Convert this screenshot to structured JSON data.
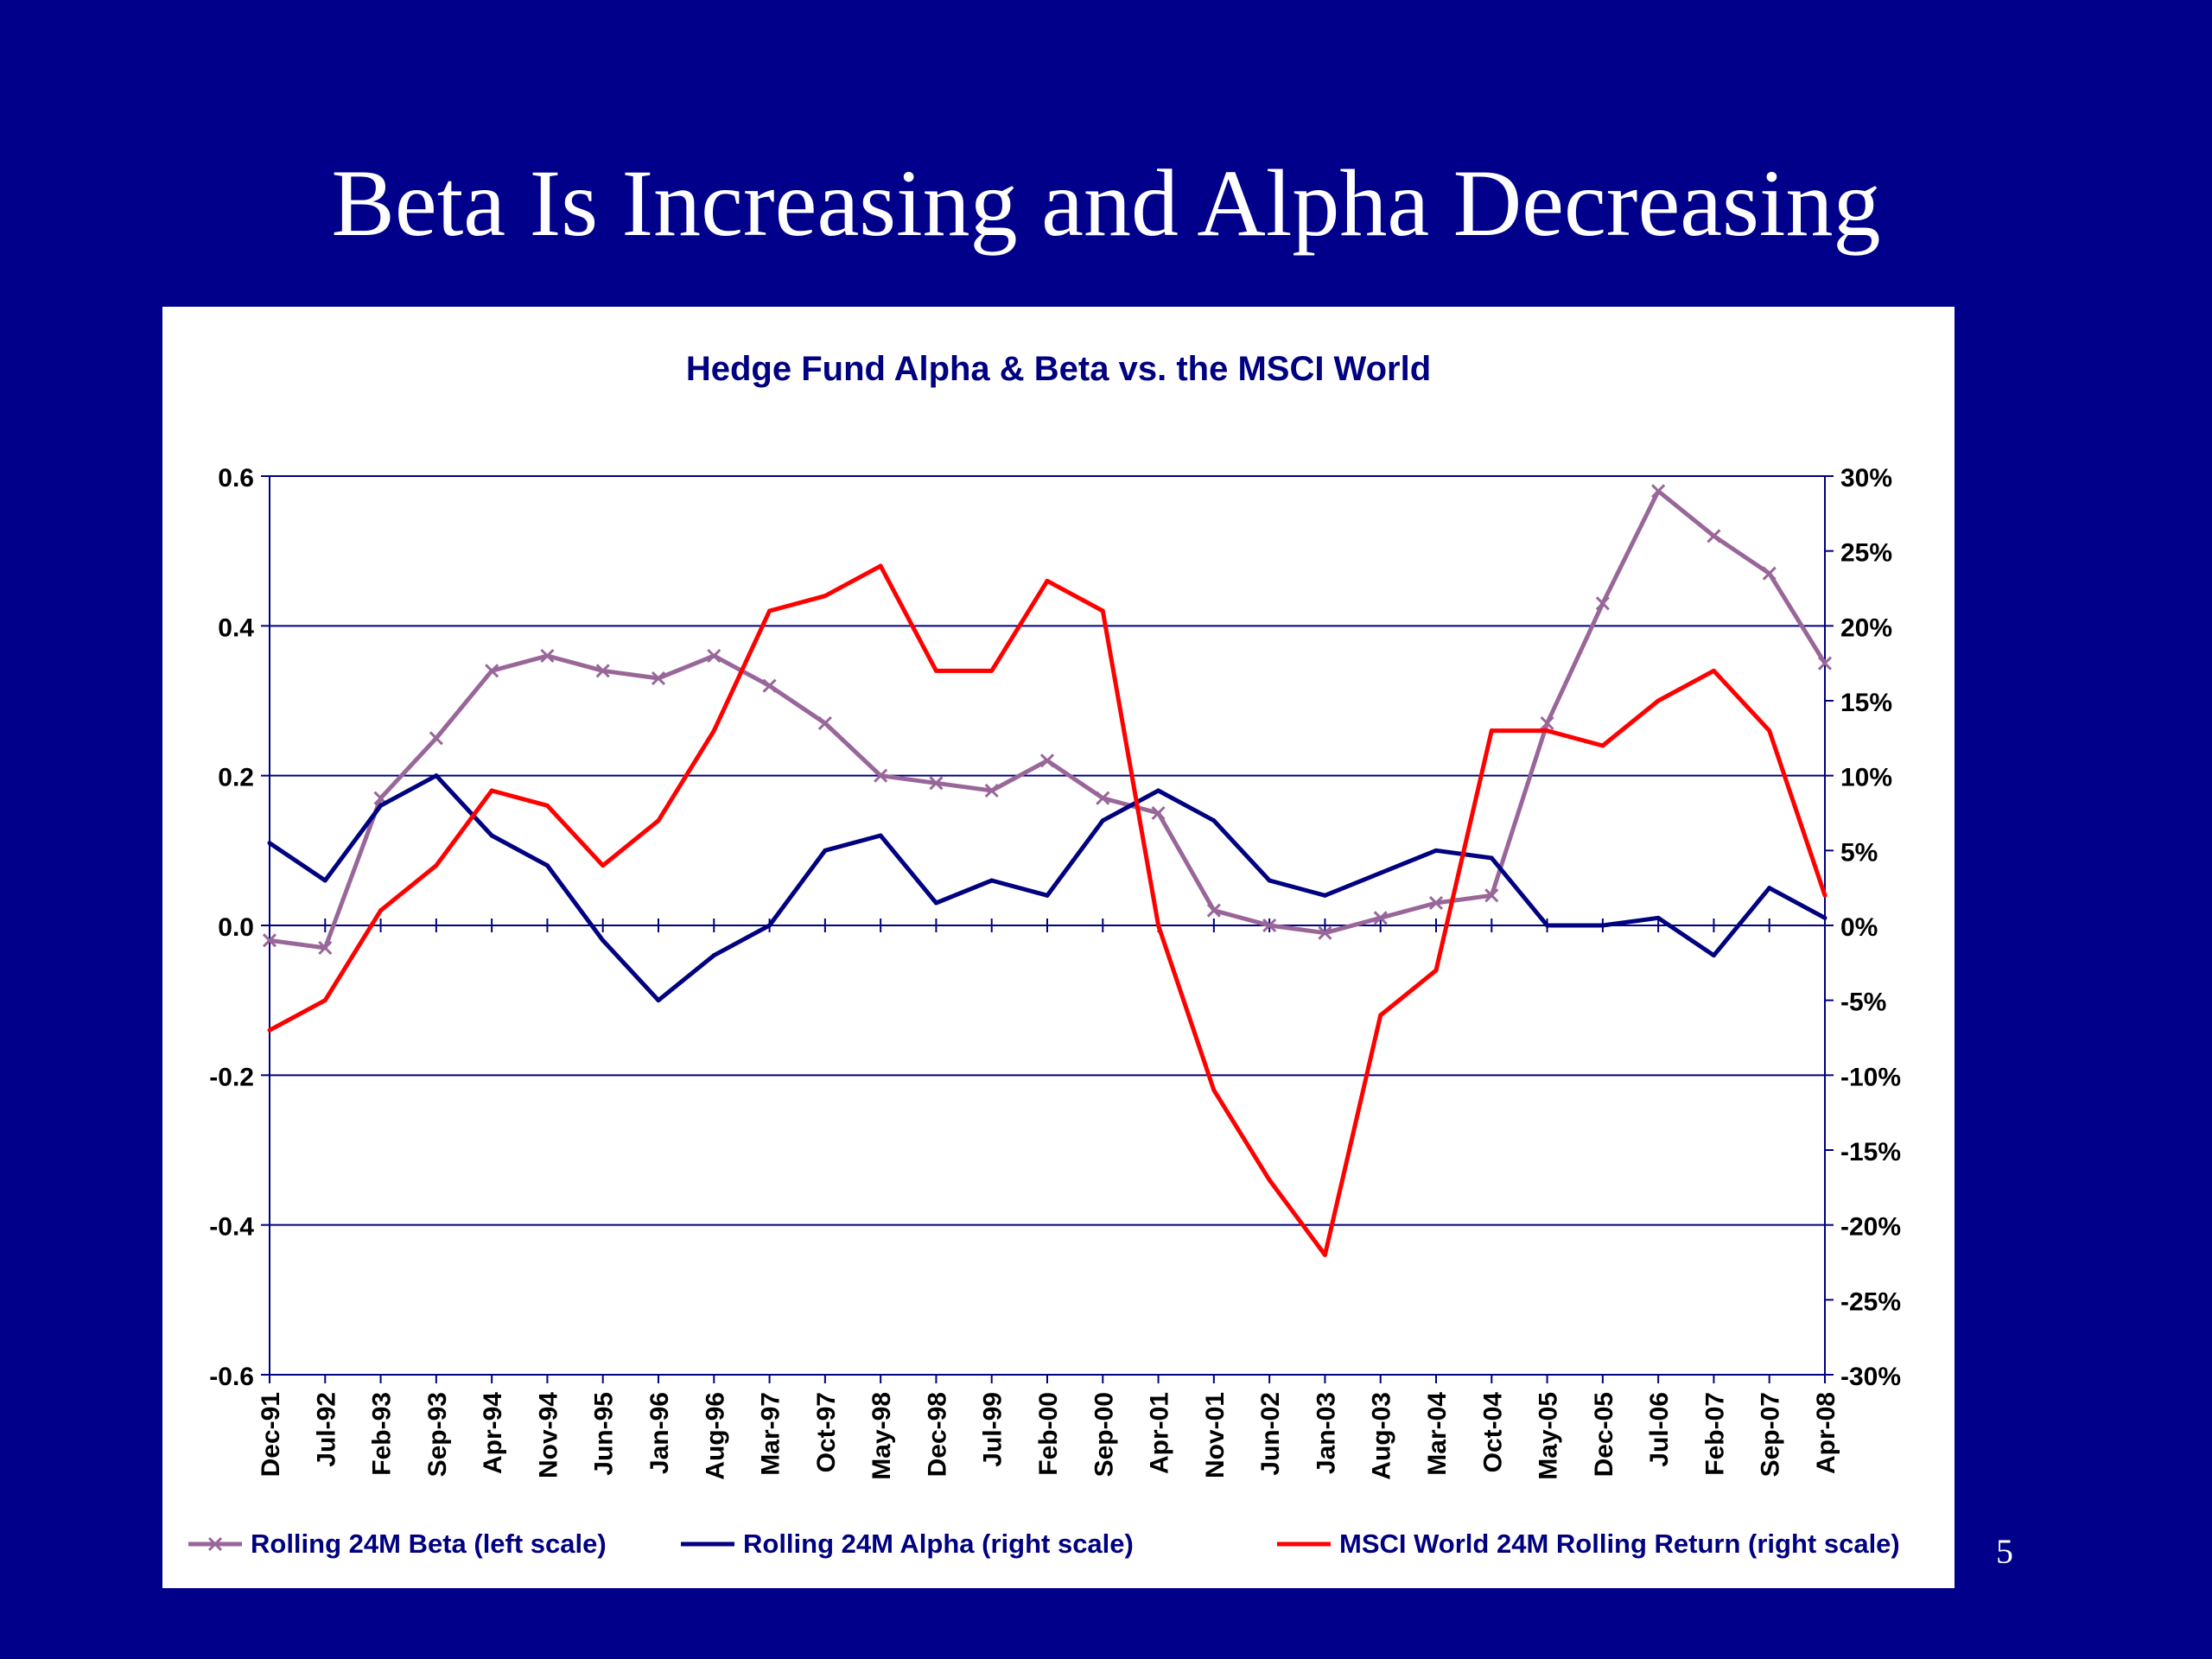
{
  "slide": {
    "title": "Beta Is Increasing and Alpha Decreasing",
    "page_number": "5",
    "background": "#00008b"
  },
  "chart_data": {
    "type": "line",
    "title": "Hedge Fund Alpha & Beta vs. the MSCI World",
    "left_axis": {
      "ylim": [
        -0.6,
        0.6
      ],
      "ticks": [
        "0.6",
        "0.4",
        "0.2",
        "0.0",
        "-0.2",
        "-0.4",
        "-0.6"
      ]
    },
    "right_axis": {
      "ylim": [
        -30,
        30
      ],
      "ticks": [
        "30%",
        "25%",
        "20%",
        "15%",
        "10%",
        "5%",
        "0%",
        "-5%",
        "-10%",
        "-15%",
        "-20%",
        "-25%",
        "-30%"
      ]
    },
    "x_tick_labels": [
      "Dec-91",
      "Jul-92",
      "Feb-93",
      "Sep-93",
      "Apr-94",
      "Nov-94",
      "Jun-95",
      "Jan-96",
      "Aug-96",
      "Mar-97",
      "Oct-97",
      "May-98",
      "Dec-98",
      "Jul-99",
      "Feb-00",
      "Sep-00",
      "Apr-01",
      "Nov-01",
      "Jun-02",
      "Jan-03",
      "Aug-03",
      "Mar-04",
      "Oct-04",
      "May-05",
      "Dec-05",
      "Jul-06",
      "Feb-07",
      "Sep-07",
      "Apr-08"
    ],
    "grid": true,
    "legend_position": "bottom",
    "series": [
      {
        "name": "Rolling 24M Beta (left scale)",
        "axis": "left",
        "color": "#996699",
        "marker": "x",
        "x": [
          "Dec-91",
          "Jul-92",
          "Feb-93",
          "Sep-93",
          "Apr-94",
          "Nov-94",
          "Jun-95",
          "Jan-96",
          "Aug-96",
          "Mar-97",
          "Oct-97",
          "May-98",
          "Dec-98",
          "Jul-99",
          "Feb-00",
          "Sep-00",
          "Apr-01",
          "Nov-01",
          "Jun-02",
          "Jan-03",
          "Aug-03",
          "Mar-04",
          "Oct-04",
          "May-05",
          "Dec-05",
          "Jul-06",
          "Feb-07",
          "Sep-07",
          "Apr-08"
        ],
        "values": [
          -0.02,
          -0.03,
          0.17,
          0.25,
          0.34,
          0.36,
          0.34,
          0.33,
          0.36,
          0.32,
          0.27,
          0.2,
          0.19,
          0.18,
          0.22,
          0.17,
          0.15,
          0.02,
          0.0,
          -0.01,
          0.01,
          0.03,
          0.04,
          0.27,
          0.43,
          0.58,
          0.52,
          0.47,
          0.35
        ]
      },
      {
        "name": "Rolling 24M Alpha (right scale)",
        "axis": "right",
        "color": "#000080",
        "x": [
          "Dec-91",
          "Jul-92",
          "Feb-93",
          "Sep-93",
          "Apr-94",
          "Nov-94",
          "Jun-95",
          "Jan-96",
          "Aug-96",
          "Mar-97",
          "Oct-97",
          "May-98",
          "Dec-98",
          "Jul-99",
          "Feb-00",
          "Sep-00",
          "Apr-01",
          "Nov-01",
          "Jun-02",
          "Jan-03",
          "Aug-03",
          "Mar-04",
          "Oct-04",
          "May-05",
          "Dec-05",
          "Jul-06",
          "Feb-07",
          "Sep-07",
          "Apr-08"
        ],
        "values": [
          5.5,
          3.0,
          8.0,
          10.0,
          6.0,
          4.0,
          -1.0,
          -5.0,
          -2.0,
          0.0,
          5.0,
          6.0,
          1.5,
          3.0,
          2.0,
          7.0,
          9.0,
          7.0,
          3.0,
          2.0,
          3.5,
          5.0,
          4.5,
          0.0,
          0.0,
          0.5,
          -2.0,
          2.5,
          0.5
        ]
      },
      {
        "name": "MSCI World 24M Rolling Return (right scale)",
        "axis": "right",
        "color": "#ff0000",
        "x": [
          "Dec-91",
          "Jul-92",
          "Feb-93",
          "Sep-93",
          "Apr-94",
          "Nov-94",
          "Jun-95",
          "Jan-96",
          "Aug-96",
          "Mar-97",
          "Oct-97",
          "May-98",
          "Dec-98",
          "Jul-99",
          "Feb-00",
          "Sep-00",
          "Apr-01",
          "Nov-01",
          "Jun-02",
          "Jan-03",
          "Aug-03",
          "Mar-04",
          "Oct-04",
          "May-05",
          "Dec-05",
          "Jul-06",
          "Feb-07",
          "Sep-07",
          "Apr-08"
        ],
        "values": [
          -7.0,
          -5.0,
          1.0,
          4.0,
          9.0,
          8.0,
          4.0,
          7.0,
          13.0,
          21.0,
          22.0,
          24.0,
          17.0,
          17.0,
          23.0,
          21.0,
          0.0,
          -11.0,
          -17.0,
          -22.0,
          -6.0,
          -3.0,
          13.0,
          13.0,
          12.0,
          15.0,
          17.0,
          13.0,
          2.0
        ]
      }
    ]
  }
}
